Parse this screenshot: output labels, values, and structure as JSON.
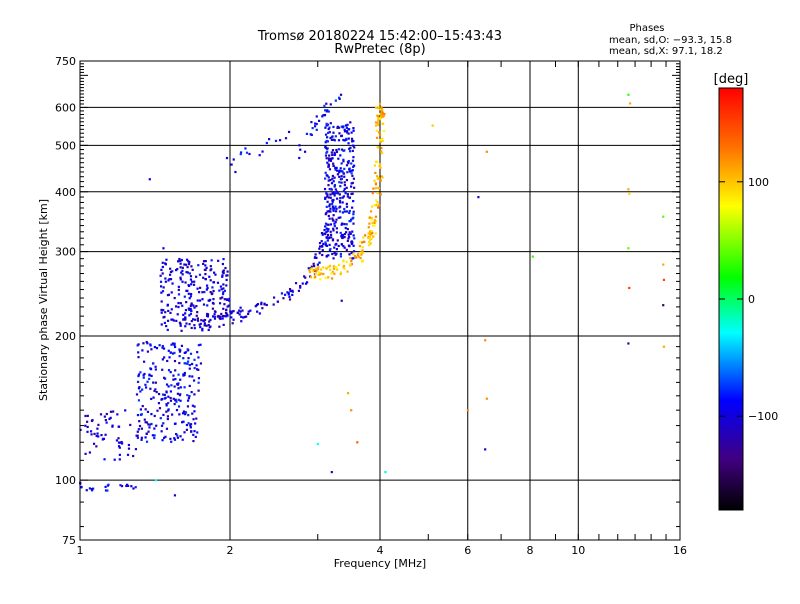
{
  "chart_data": {
    "type": "scatter",
    "title": "Tromsø 20180224 15:42:00–15:43:43",
    "subtitle": "RwPretec (8p)",
    "xlabel": "Frequency [MHz]",
    "ylabel": "Stationary phase Virtual Height [km]",
    "x_scale": "log",
    "y_scale": "log",
    "xlim": [
      1,
      16
    ],
    "ylim": [
      75,
      750
    ],
    "x_ticks": [
      1,
      2,
      4,
      6,
      8,
      10,
      16
    ],
    "x_tick_labels": [
      "1",
      "2",
      "4",
      "6",
      "8",
      "10",
      "16"
    ],
    "y_ticks": [
      75,
      100,
      200,
      300,
      400,
      500,
      600,
      750
    ],
    "y_tick_labels": [
      "75",
      "100",
      "200",
      "300",
      "400",
      "500",
      "600",
      "750"
    ],
    "grid": true,
    "phases": {
      "title": "Phases",
      "line_o": "mean, sd,O: −93.3, 15.8",
      "line_x": "mean, sd,X:  97.1, 18.2"
    },
    "colorbar": {
      "label": "[deg]",
      "range": [
        -180,
        180
      ],
      "ticks": [
        100,
        0,
        -100
      ],
      "tick_labels": [
        "100",
        "0",
        "−100"
      ],
      "colors": [
        "#ff0000",
        "#ff8000",
        "#ffff00",
        "#00ff00",
        "#00ffff",
        "#0000ff",
        "#400080",
        "#000000"
      ]
    },
    "series": [
      {
        "name": "O",
        "phase_mean": -93.3,
        "phase_sd": 15.8
      },
      {
        "name": "X",
        "phase_mean": 97.1,
        "phase_sd": 18.2
      }
    ],
    "clusters": [
      {
        "kind": "band",
        "f": [
          1.0,
          1.3
        ],
        "h": [
          110,
          140
        ],
        "n": 60,
        "phase": -110
      },
      {
        "kind": "band",
        "f": [
          1.3,
          1.75
        ],
        "h": [
          120,
          195
        ],
        "n": 260,
        "phase": -100
      },
      {
        "kind": "band",
        "f": [
          1.45,
          2.0
        ],
        "h": [
          215,
          290
        ],
        "n": 230,
        "phase": -105
      },
      {
        "kind": "curve",
        "pts": [
          [
            1.45,
            210
          ],
          [
            1.8,
            212
          ],
          [
            2.1,
            222
          ],
          [
            2.5,
            238
          ],
          [
            2.8,
            258
          ],
          [
            3.0,
            285
          ],
          [
            3.15,
            340
          ],
          [
            3.2,
            460
          ]
        ],
        "n": 170,
        "phase": -110
      },
      {
        "kind": "band",
        "f": [
          3.1,
          3.55
        ],
        "h": [
          290,
          560
        ],
        "n": 320,
        "phase": -100
      },
      {
        "kind": "curve",
        "pts": [
          [
            2.75,
            480
          ],
          [
            3.0,
            560
          ],
          [
            3.3,
            630
          ]
        ],
        "n": 30,
        "phase": -100
      },
      {
        "kind": "curve",
        "pts": [
          [
            1.9,
            460
          ],
          [
            2.3,
            490
          ],
          [
            2.6,
            520
          ]
        ],
        "n": 16,
        "phase": -100
      },
      {
        "kind": "curve",
        "pts": [
          [
            2.9,
            270
          ],
          [
            3.2,
            272
          ],
          [
            3.6,
            290
          ],
          [
            3.85,
            330
          ],
          [
            3.97,
            420
          ],
          [
            4.0,
            560
          ],
          [
            4.0,
            600
          ]
        ],
        "n": 190,
        "phase": 105
      },
      {
        "kind": "band",
        "f": [
          1.0,
          1.15
        ],
        "h": [
          95,
          99
        ],
        "n": 14,
        "phase": -100
      },
      {
        "kind": "band",
        "f": [
          1.2,
          1.3
        ],
        "h": [
          96,
          98
        ],
        "n": 8,
        "phase": -100
      }
    ],
    "points": [
      {
        "x": 1.55,
        "y": 93,
        "phase": -110
      },
      {
        "x": 1.42,
        "y": 100,
        "phase": -30
      },
      {
        "x": 1.47,
        "y": 305,
        "phase": -100
      },
      {
        "x": 1.38,
        "y": 425,
        "phase": -100
      },
      {
        "x": 2.05,
        "y": 440,
        "phase": -110
      },
      {
        "x": 3.35,
        "y": 237,
        "phase": -110
      },
      {
        "x": 3.45,
        "y": 152,
        "phase": 110
      },
      {
        "x": 3.5,
        "y": 140,
        "phase": 120
      },
      {
        "x": 3.6,
        "y": 120,
        "phase": 140
      },
      {
        "x": 3.2,
        "y": 104,
        "phase": -120
      },
      {
        "x": 3.0,
        "y": 119,
        "phase": -30
      },
      {
        "x": 4.1,
        "y": 104,
        "phase": -20
      },
      {
        "x": 5.1,
        "y": 550,
        "phase": 100
      },
      {
        "x": 6.0,
        "y": 140,
        "phase": 120
      },
      {
        "x": 6.5,
        "y": 116,
        "phase": -120
      },
      {
        "x": 6.55,
        "y": 148,
        "phase": 120
      },
      {
        "x": 6.5,
        "y": 196,
        "phase": 120
      },
      {
        "x": 6.55,
        "y": 485,
        "phase": 120
      },
      {
        "x": 6.3,
        "y": 390,
        "phase": -110
      },
      {
        "x": 8.1,
        "y": 293,
        "phase": 30
      },
      {
        "x": 12.6,
        "y": 638,
        "phase": 30
      },
      {
        "x": 12.7,
        "y": 612,
        "phase": 110
      },
      {
        "x": 12.6,
        "y": 405,
        "phase": 110
      },
      {
        "x": 12.65,
        "y": 396,
        "phase": 90
      },
      {
        "x": 12.6,
        "y": 305,
        "phase": 40
      },
      {
        "x": 12.65,
        "y": 252,
        "phase": 150
      },
      {
        "x": 12.6,
        "y": 193,
        "phase": -130
      },
      {
        "x": 14.8,
        "y": 355,
        "phase": 40
      },
      {
        "x": 14.8,
        "y": 282,
        "phase": 110
      },
      {
        "x": 14.85,
        "y": 262,
        "phase": 150
      },
      {
        "x": 14.8,
        "y": 232,
        "phase": -150
      },
      {
        "x": 14.85,
        "y": 190,
        "phase": 110
      }
    ]
  }
}
